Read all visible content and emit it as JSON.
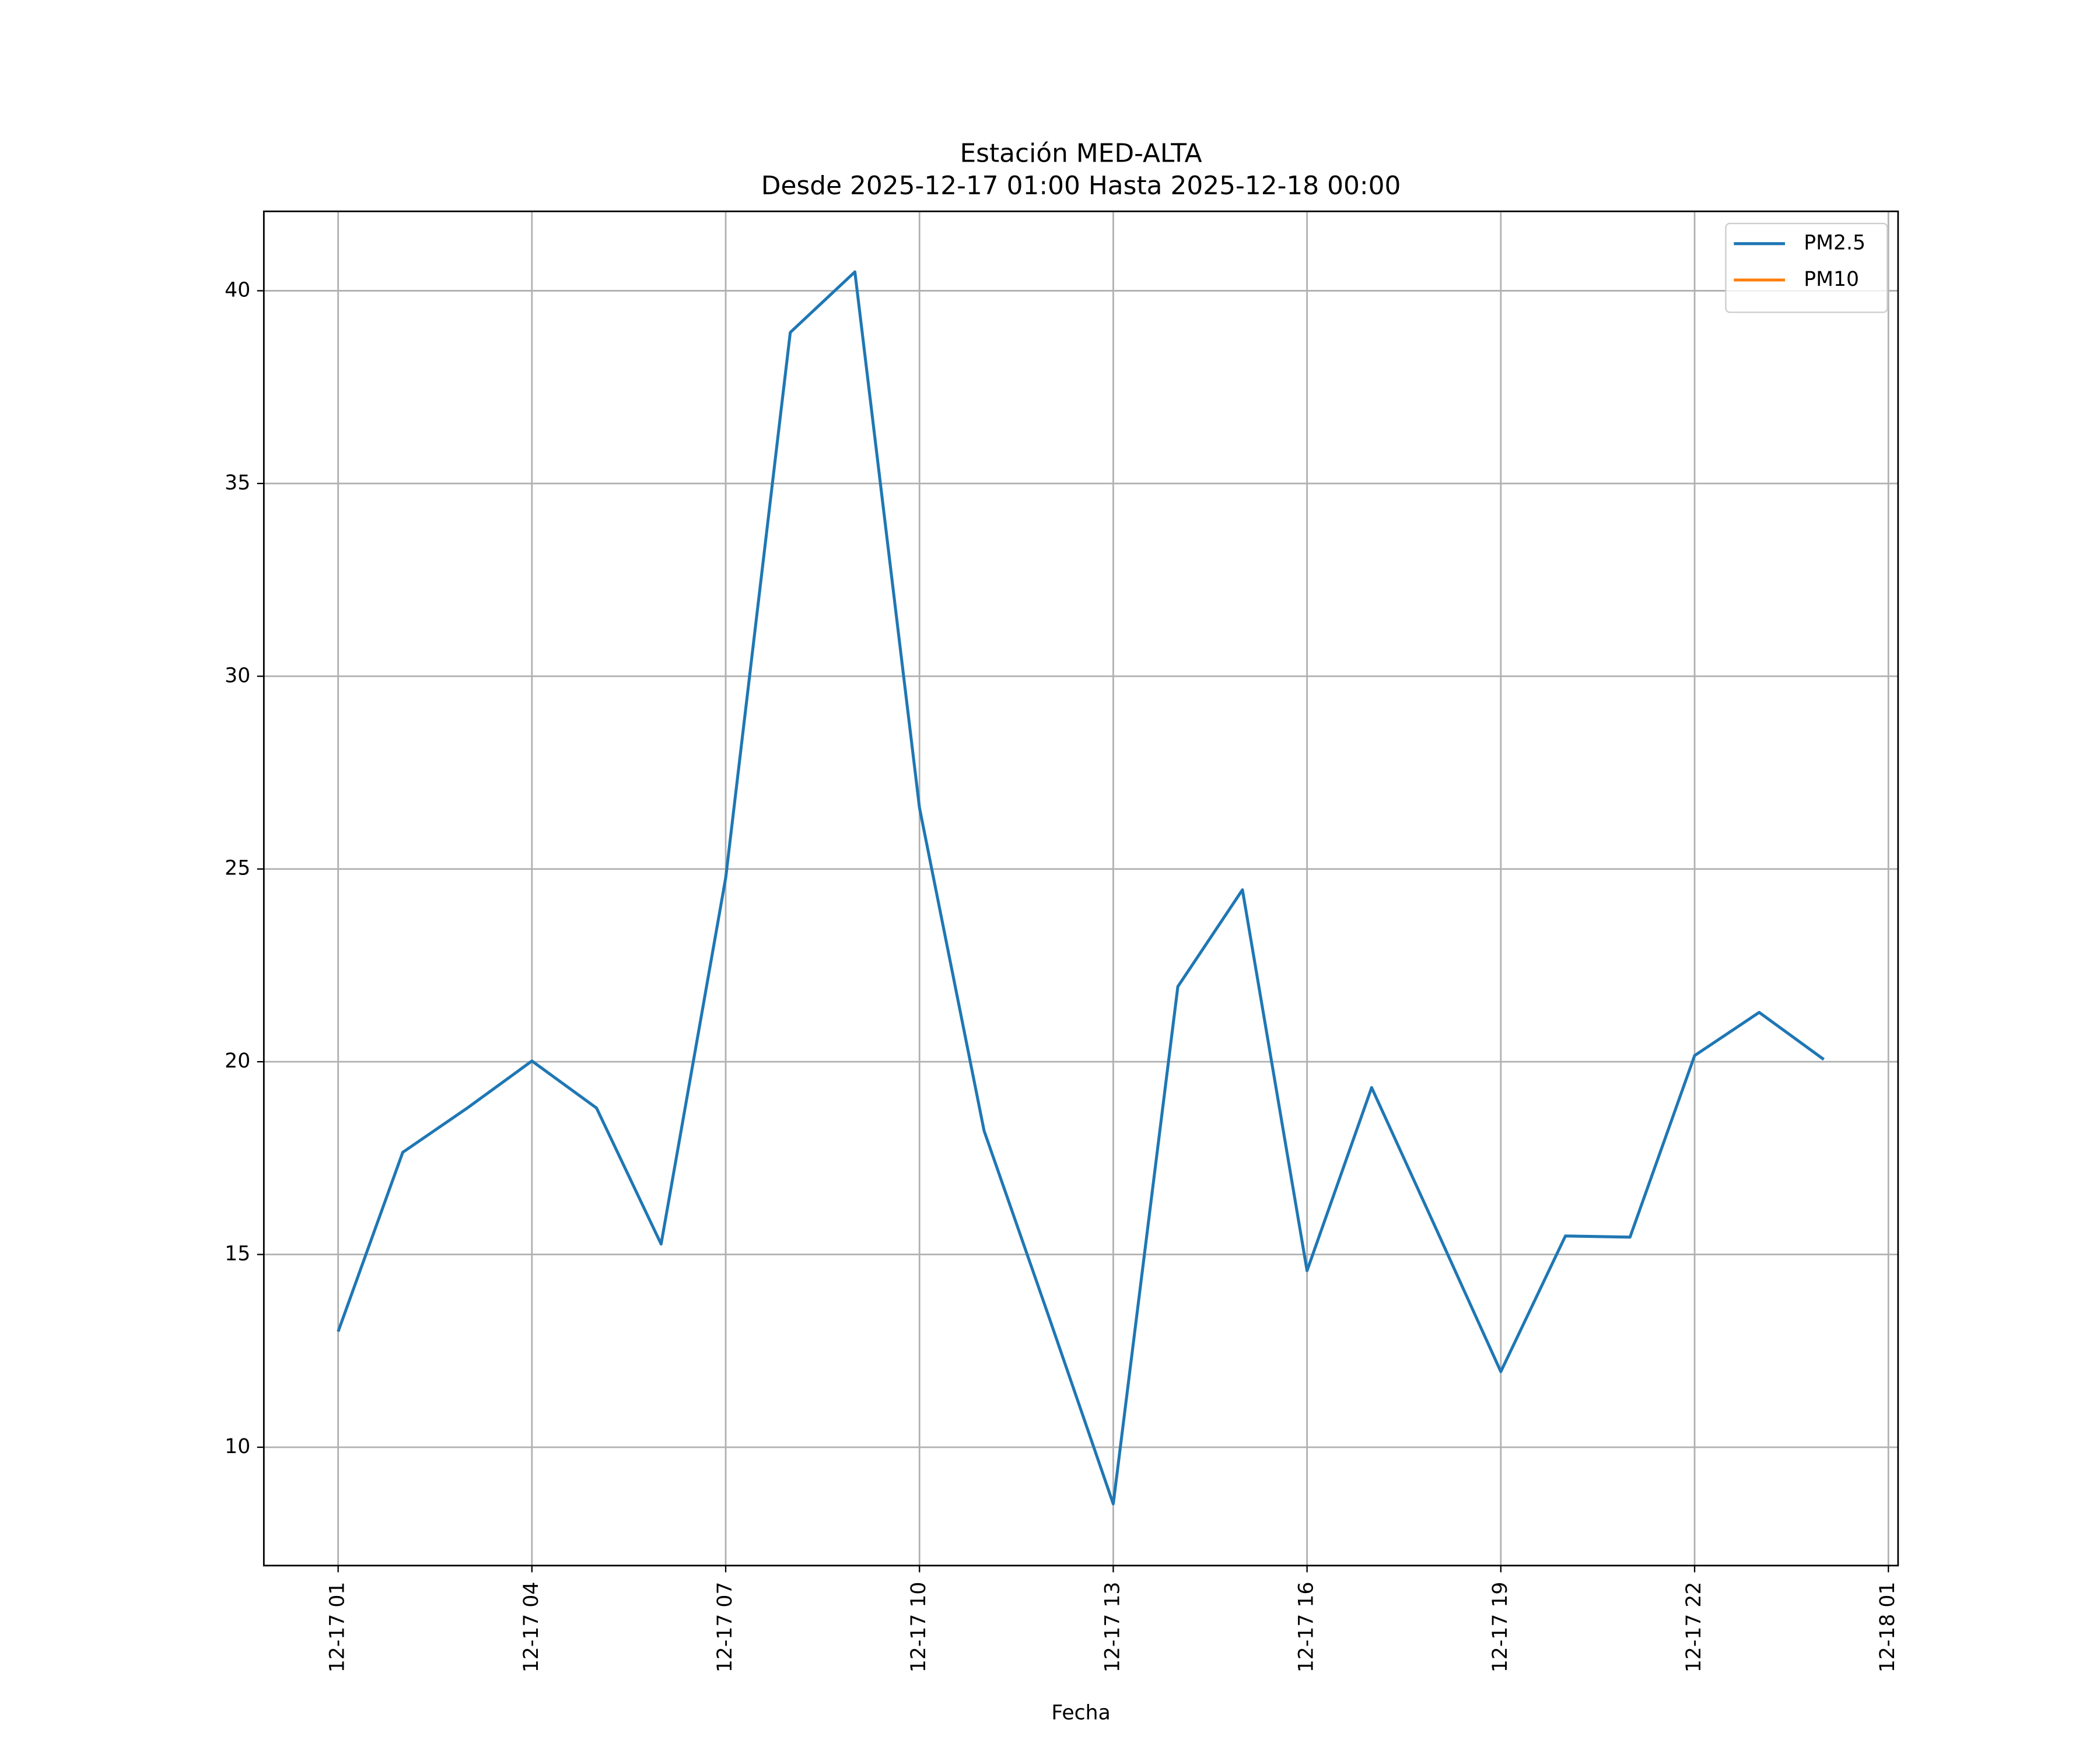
{
  "chart_data": {
    "type": "line",
    "title": "Estación MED-ALTA",
    "subtitle": "Desde 2025-12-17 01:00 Hasta 2025-12-18 00:00",
    "xlabel": "Fecha",
    "x": [
      "12-17 01",
      "12-17 02",
      "12-17 03",
      "12-17 04",
      "12-17 05",
      "12-17 06",
      "12-17 07",
      "12-17 08",
      "12-17 09",
      "12-17 10",
      "12-17 11",
      "12-17 12",
      "12-17 13",
      "12-17 14",
      "12-17 15",
      "12-17 16",
      "12-17 17",
      "12-17 18",
      "12-17 19",
      "12-17 20",
      "12-17 21",
      "12-17 22",
      "12-17 23",
      "12-18 00"
    ],
    "series": [
      {
        "name": "PM2.5",
        "color": "#1f77b4",
        "values": [
          13.0,
          17.65,
          18.8,
          20.02,
          18.8,
          15.27,
          24.77,
          38.92,
          40.49,
          26.59,
          18.21,
          13.4,
          8.53,
          21.95,
          24.46,
          14.58,
          19.33,
          15.66,
          11.96,
          15.48,
          15.45,
          20.16,
          21.28,
          20.06
        ]
      },
      {
        "name": "PM10",
        "color": "#ff7f0e",
        "values": [
          null,
          null,
          null,
          null,
          null,
          null,
          null,
          null,
          null,
          null,
          null,
          null,
          null,
          null,
          null,
          null,
          null,
          null,
          null,
          null,
          null,
          null,
          null,
          null
        ]
      }
    ],
    "xlim": [
      "12-16 23:51",
      "12-18 01:09"
    ],
    "xticks": [
      "12-17 01",
      "12-17 04",
      "12-17 07",
      "12-17 10",
      "12-17 13",
      "12-17 16",
      "12-17 19",
      "12-17 22",
      "12-18 01"
    ],
    "ylim": [
      6.93,
      42.06
    ],
    "yticks": [
      10,
      15,
      20,
      25,
      30,
      35,
      40
    ],
    "grid": true,
    "legend": "upper right"
  }
}
